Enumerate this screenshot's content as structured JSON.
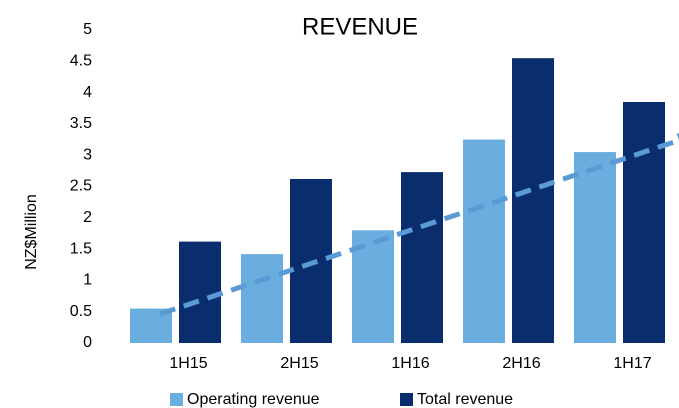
{
  "chart_data": {
    "type": "bar",
    "title": "REVENUE",
    "y_label": "NZ$Million",
    "categories": [
      "1H15",
      "2H15",
      "1H16",
      "2H16",
      "1H17"
    ],
    "series": [
      {
        "name": "Operating revenue",
        "color": "#6aaee0",
        "values": [
          0.55,
          1.42,
          1.8,
          3.25,
          3.05
        ]
      },
      {
        "name": "Total revenue",
        "color": "#0a2d6e",
        "values": [
          1.62,
          2.62,
          2.73,
          4.55,
          3.85
        ]
      }
    ],
    "ylim": [
      0,
      5
    ],
    "yticks": [
      0,
      0.5,
      1,
      1.5,
      2,
      2.5,
      3,
      3.5,
      4,
      4.5,
      5
    ],
    "grid": false,
    "legend": "bottom"
  }
}
